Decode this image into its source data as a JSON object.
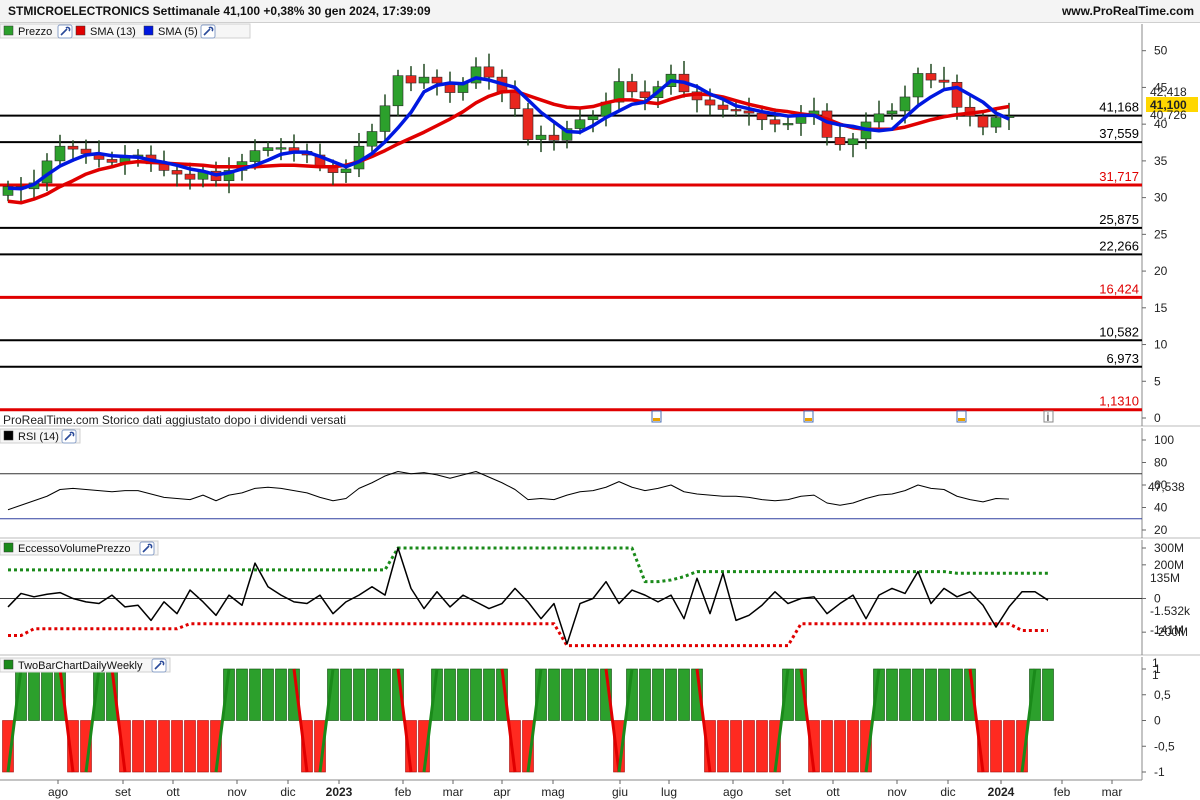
{
  "header": {
    "title": "STMICROELECTRONICS Settimanale 41,100 +0,38% 30 gen 2024, 17:39:09",
    "site": "www.ProRealTime.com"
  },
  "price_panel": {
    "legend": [
      {
        "label": "Prezzo",
        "icon": "candlestick-icon",
        "color": "#1a9a1a"
      },
      {
        "label": "SMA (13)",
        "color": "#e00000"
      },
      {
        "label": "SMA (5)",
        "color": "#0018e0"
      }
    ],
    "footer_note": "ProRealTime.com Storico dati aggiustato dopo i dividendi versati",
    "right_badges": [
      {
        "text": "42,418",
        "color": "#e00000"
      },
      {
        "text": "41,100",
        "color": "#000000",
        "bg": "#ffd700"
      },
      {
        "text": "40,726",
        "color": "#0018e0"
      }
    ]
  },
  "rsi_panel": {
    "legend": "RSI (14)",
    "badge": "47,538"
  },
  "evp_panel": {
    "legend": "EccessoVolumePrezzo",
    "badges": [
      "135M",
      "-1.532k",
      "-141M"
    ]
  },
  "tbc_panel": {
    "legend": "TwoBarChartDailyWeekly",
    "badges": [
      "1",
      "1"
    ]
  },
  "chart_data": [
    {
      "type": "candlestick",
      "title": "STMICROELECTRONICS Settimanale",
      "ylim": [
        0,
        52
      ],
      "y_ticks": [
        "0",
        "5",
        "10",
        "15",
        "20",
        "25",
        "30",
        "35",
        "40",
        "45",
        "50"
      ],
      "x_ticks": [
        "ago",
        "set",
        "ott",
        "nov",
        "dic",
        "2023",
        "feb",
        "mar",
        "apr",
        "mag",
        "giu",
        "lug",
        "ago",
        "set",
        "ott",
        "nov",
        "dic",
        "2024",
        "feb",
        "mar"
      ],
      "levels": [
        {
          "label": "41,168",
          "value": 41.168,
          "color": "#000000"
        },
        {
          "label": "37,559",
          "value": 37.559,
          "color": "#000000"
        },
        {
          "label": "31,717",
          "value": 31.717,
          "color": "#e00000"
        },
        {
          "label": "25,875",
          "value": 25.875,
          "color": "#000000"
        },
        {
          "label": "22,266",
          "value": 22.266,
          "color": "#000000"
        },
        {
          "label": "16,424",
          "value": 16.424,
          "color": "#e00000"
        },
        {
          "label": "10,582",
          "value": 10.582,
          "color": "#000000"
        },
        {
          "label": "6,973",
          "value": 6.973,
          "color": "#000000"
        },
        {
          "label": "1,1310",
          "value": 1.131,
          "color": "#e00000"
        }
      ],
      "close": [
        31.5,
        31.2,
        32.0,
        35.0,
        37.0,
        36.6,
        36.0,
        35.2,
        34.8,
        35.6,
        35.8,
        34.6,
        33.7,
        33.2,
        32.5,
        33.6,
        32.3,
        33.7,
        34.9,
        36.4,
        36.8,
        36.8,
        36.3,
        35.8,
        34.4,
        33.4,
        33.9,
        37.0,
        39.0,
        42.5,
        46.6,
        45.6,
        46.4,
        45.6,
        44.3,
        45.6,
        47.8,
        46.4,
        44.4,
        42.1,
        37.9,
        38.5,
        37.8,
        39.4,
        40.6,
        41.1,
        43.0,
        45.8,
        44.4,
        43.6,
        45.1,
        46.8,
        44.4,
        43.3,
        42.6,
        42.0,
        41.8,
        41.5,
        40.6,
        40.0,
        40.1,
        41.3,
        41.8,
        38.2,
        37.2,
        38.0,
        40.3,
        41.4,
        41.8,
        43.7,
        46.9,
        46.0,
        45.7,
        42.3,
        41.1,
        39.6,
        40.9,
        41.1
      ],
      "sma13": [
        29.5,
        29.3,
        29.8,
        30.5,
        31.5,
        32.3,
        33.2,
        33.8,
        34.2,
        34.7,
        34.9,
        34.8,
        34.7,
        34.6,
        34.5,
        34.4,
        34.2,
        34.2,
        34.2,
        34.2,
        34.3,
        34.4,
        34.4,
        34.3,
        34.2,
        34.2,
        34.4,
        34.9,
        35.6,
        36.4,
        37.3,
        38.1,
        38.9,
        39.8,
        40.7,
        41.7,
        42.9,
        43.8,
        44.4,
        44.5,
        43.9,
        43.3,
        42.7,
        42.3,
        42.2,
        42.4,
        42.9,
        43.3,
        43.3,
        43.0,
        42.8,
        43.4,
        43.9,
        44.1,
        44.0,
        43.7,
        43.2,
        42.7,
        42.3,
        41.9,
        41.7,
        41.4,
        41.2,
        40.7,
        40.0,
        39.5,
        39.3,
        39.3,
        39.3,
        39.6,
        40.1,
        40.6,
        41.0,
        41.3,
        41.5,
        41.7,
        42.1,
        42.4
      ],
      "sma5": [
        31.3,
        31.2,
        31.8,
        33.1,
        34.3,
        35.1,
        35.8,
        36.0,
        35.7,
        35.6,
        35.5,
        35.1,
        34.8,
        34.4,
        33.9,
        33.6,
        33.1,
        33.4,
        33.9,
        34.4,
        35.1,
        35.9,
        36.2,
        36.2,
        35.6,
        34.9,
        34.2,
        34.9,
        36.0,
        37.6,
        39.5,
        41.6,
        44.4,
        45.3,
        45.6,
        45.5,
        46.3,
        46.0,
        45.5,
        45.0,
        43.3,
        41.6,
        40.3,
        39.0,
        38.9,
        39.8,
        40.9,
        41.8,
        42.7,
        43.0,
        44.4,
        45.9,
        45.7,
        45.1,
        44.1,
        43.4,
        42.5,
        42.1,
        41.7,
        41.4,
        41.1,
        41.2,
        41.2,
        40.3,
        39.9,
        39.7,
        39.3,
        39.1,
        39.3,
        40.9,
        42.5,
        43.7,
        44.7,
        45.0,
        44.0,
        43.0,
        41.5,
        40.7
      ]
    },
    {
      "type": "line",
      "title": "RSI (14)",
      "ylim": [
        20,
        100
      ],
      "y_ticks": [
        "100",
        "80",
        "60",
        "40",
        "20"
      ],
      "bands": [
        70,
        30
      ],
      "values": [
        38,
        42,
        46,
        50,
        56,
        57,
        56,
        55,
        54,
        55,
        55,
        52,
        49,
        48,
        47,
        51,
        46,
        51,
        53,
        57,
        58,
        57,
        55,
        53,
        49,
        46,
        48,
        57,
        62,
        68,
        72,
        70,
        71,
        69,
        66,
        69,
        72,
        67,
        62,
        56,
        47,
        48,
        47,
        51,
        54,
        55,
        58,
        63,
        58,
        55,
        57,
        60,
        54,
        52,
        51,
        50,
        50,
        49,
        47,
        46,
        47,
        50,
        51,
        44,
        42,
        44,
        48,
        51,
        52,
        55,
        60,
        57,
        56,
        50,
        47,
        45,
        48,
        47.5
      ]
    },
    {
      "type": "line",
      "title": "EccessoVolumePrezzo",
      "ylim": [
        -300,
        300
      ],
      "y_ticks": [
        "300M",
        "200M",
        "0",
        "-200M"
      ],
      "values": [
        -50,
        30,
        10,
        25,
        35,
        0,
        -20,
        -30,
        20,
        -50,
        -40,
        -130,
        -20,
        -90,
        50,
        -20,
        -100,
        20,
        -40,
        210,
        70,
        20,
        -20,
        -30,
        20,
        -90,
        -20,
        20,
        70,
        20,
        300,
        60,
        -60,
        40,
        -50,
        20,
        -20,
        -60,
        -30,
        60,
        -20,
        -120,
        -30,
        -270,
        -30,
        0,
        100,
        -30,
        50,
        20,
        -20,
        20,
        -120,
        120,
        -90,
        150,
        -130,
        -100,
        -40,
        40,
        -30,
        0,
        10,
        -90,
        -30,
        20,
        -120,
        20,
        60,
        30,
        160,
        -30,
        60,
        10,
        40,
        -40,
        -170,
        -50,
        40,
        40,
        -10
      ],
      "upper_band": [
        170,
        170,
        170,
        170,
        170,
        170,
        170,
        170,
        170,
        170,
        170,
        170,
        170,
        170,
        170,
        170,
        170,
        170,
        170,
        170,
        170,
        170,
        170,
        170,
        170,
        170,
        170,
        170,
        170,
        170,
        300,
        300,
        300,
        300,
        300,
        300,
        300,
        300,
        300,
        300,
        300,
        300,
        300,
        300,
        300,
        300,
        300,
        300,
        300,
        100,
        100,
        110,
        130,
        160,
        160,
        160,
        160,
        160,
        160,
        160,
        160,
        160,
        160,
        160,
        160,
        160,
        160,
        160,
        160,
        160,
        160,
        160,
        160,
        150,
        150,
        150,
        150,
        150,
        150,
        150,
        150
      ],
      "lower_band": [
        -220,
        -220,
        -180,
        -180,
        -180,
        -180,
        -180,
        -180,
        -180,
        -180,
        -180,
        -180,
        -180,
        -180,
        -150,
        -150,
        -150,
        -150,
        -150,
        -150,
        -150,
        -150,
        -150,
        -150,
        -150,
        -150,
        -150,
        -150,
        -150,
        -150,
        -150,
        -150,
        -150,
        -150,
        -150,
        -150,
        -150,
        -150,
        -150,
        -150,
        -150,
        -150,
        -150,
        -280,
        -280,
        -280,
        -280,
        -280,
        -280,
        -280,
        -280,
        -280,
        -280,
        -280,
        -280,
        -280,
        -280,
        -280,
        -280,
        -280,
        -280,
        -150,
        -150,
        -150,
        -150,
        -150,
        -150,
        -150,
        -150,
        -150,
        -150,
        -150,
        -150,
        -150,
        -150,
        -150,
        -150,
        -150,
        -190,
        -190,
        -190
      ],
      "badges": [
        "135M",
        "-1.532k",
        "-141M"
      ]
    },
    {
      "type": "bar",
      "title": "TwoBarChartDailyWeekly",
      "ylim": [
        -1,
        1
      ],
      "y_ticks": [
        "1",
        "0,5",
        "0",
        "-0,5",
        "-1"
      ],
      "values": [
        -1,
        1,
        1,
        1,
        1,
        -1,
        -1,
        1,
        1,
        -1,
        -1,
        -1,
        -1,
        -1,
        -1,
        -1,
        -1,
        1,
        1,
        1,
        1,
        1,
        1,
        -1,
        -1,
        1,
        1,
        1,
        1,
        1,
        1,
        -1,
        -1,
        1,
        1,
        1,
        1,
        1,
        1,
        -1,
        -1,
        1,
        1,
        1,
        1,
        1,
        1,
        -1,
        1,
        1,
        1,
        1,
        1,
        1,
        -1,
        -1,
        -1,
        -1,
        -1,
        -1,
        1,
        1,
        -1,
        -1,
        -1,
        -1,
        -1,
        1,
        1,
        1,
        1,
        1,
        1,
        1,
        1,
        -1,
        -1,
        -1,
        -1,
        1,
        1,
        1
      ]
    }
  ]
}
